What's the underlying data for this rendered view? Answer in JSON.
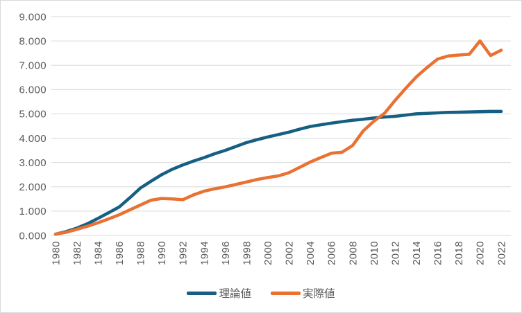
{
  "chart_data": {
    "type": "line",
    "title": "",
    "xlabel": "",
    "ylabel": "",
    "x": [
      1980,
      1981,
      1982,
      1983,
      1984,
      1985,
      1986,
      1987,
      1988,
      1989,
      1990,
      1991,
      1992,
      1993,
      1994,
      1995,
      1996,
      1997,
      1998,
      1999,
      2000,
      2001,
      2002,
      2003,
      2004,
      2005,
      2006,
      2007,
      2008,
      2009,
      2010,
      2011,
      2012,
      2013,
      2014,
      2015,
      2016,
      2017,
      2018,
      2019,
      2020,
      2021,
      2022
    ],
    "series": [
      {
        "name": "理論値",
        "color": "#156082",
        "values": [
          0.05,
          0.16,
          0.3,
          0.48,
          0.7,
          0.93,
          1.17,
          1.55,
          1.95,
          2.23,
          2.5,
          2.72,
          2.9,
          3.06,
          3.2,
          3.36,
          3.5,
          3.66,
          3.82,
          3.94,
          4.05,
          4.15,
          4.25,
          4.37,
          4.48,
          4.55,
          4.62,
          4.68,
          4.74,
          4.78,
          4.83,
          4.87,
          4.9,
          4.95,
          5.0,
          5.02,
          5.04,
          5.06,
          5.07,
          5.08,
          5.09,
          5.1,
          5.1
        ]
      },
      {
        "name": "実際値",
        "color": "#E97132",
        "values": [
          0.05,
          0.13,
          0.25,
          0.38,
          0.52,
          0.68,
          0.85,
          1.05,
          1.25,
          1.45,
          1.52,
          1.5,
          1.47,
          1.67,
          1.82,
          1.92,
          2.0,
          2.1,
          2.2,
          2.3,
          2.38,
          2.45,
          2.58,
          2.8,
          3.02,
          3.2,
          3.38,
          3.42,
          3.7,
          4.3,
          4.7,
          5.02,
          5.55,
          6.05,
          6.52,
          6.9,
          7.25,
          7.38,
          7.42,
          7.45,
          8.0,
          7.4,
          7.62
        ]
      }
    ],
    "ylim": [
      0,
      9
    ],
    "y_tick_step": 1,
    "y_tick_labels": [
      "0.000",
      "1.000",
      "2.000",
      "3.000",
      "4.000",
      "5.000",
      "6.000",
      "7.000",
      "8.000",
      "9.000"
    ],
    "x_tick_labels": [
      "1980",
      "1982",
      "1984",
      "1986",
      "1988",
      "1990",
      "1992",
      "1994",
      "1996",
      "1998",
      "2000",
      "2002",
      "2004",
      "2006",
      "2008",
      "2010",
      "2012",
      "2014",
      "2016",
      "2018",
      "2020",
      "2022"
    ],
    "grid": "horizontal",
    "legend_position": "bottom",
    "axis_text_color": "#595959",
    "gridline_color": "#d9d9d9",
    "border_color": "#d9d9d9",
    "background": "#ffffff"
  }
}
